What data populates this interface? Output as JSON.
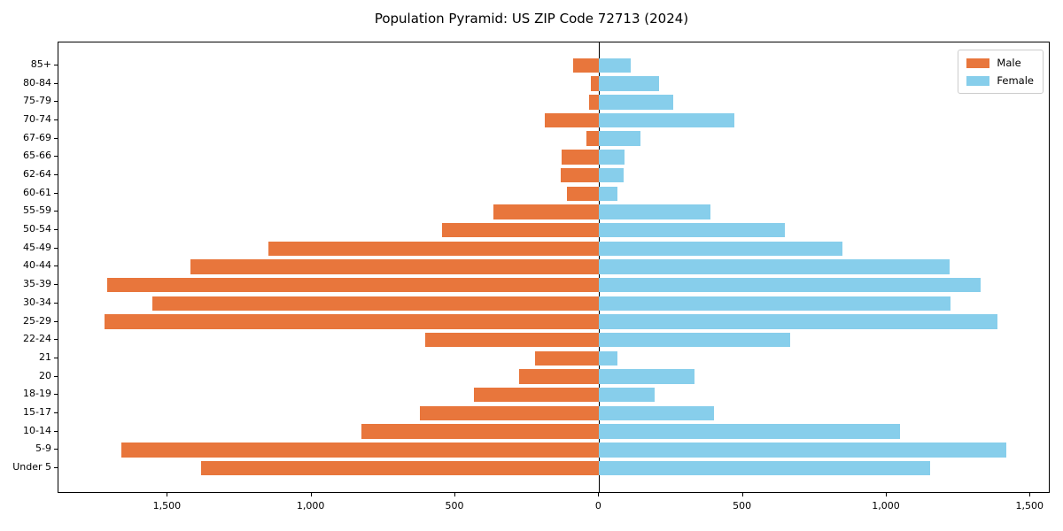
{
  "chart_data": {
    "type": "bar",
    "variant": "population-pyramid",
    "orientation": "horizontal",
    "title": "Population Pyramid: US ZIP Code 72713 (2024)",
    "categories_top_to_bottom": [
      "85+",
      "80-84",
      "75-79",
      "70-74",
      "67-69",
      "65-66",
      "62-64",
      "60-61",
      "55-59",
      "50-54",
      "45-49",
      "40-44",
      "35-39",
      "30-34",
      "25-29",
      "22-24",
      "21",
      "20",
      "18-19",
      "15-17",
      "10-14",
      "5-9",
      "Under 5"
    ],
    "series": [
      {
        "name": "Male",
        "color": "#e8763c",
        "side": "left",
        "values": [
          90,
          30,
          35,
          190,
          45,
          130,
          133,
          113,
          367,
          545,
          1150,
          1422,
          1710,
          1555,
          1719,
          606,
          224,
          277,
          435,
          622,
          826,
          1660,
          1383
        ]
      },
      {
        "name": "Female",
        "color": "#87ceeb",
        "side": "right",
        "values": [
          110,
          210,
          258,
          470,
          145,
          87,
          85,
          64,
          388,
          646,
          847,
          1218,
          1328,
          1222,
          1386,
          665,
          65,
          333,
          193,
          400,
          1047,
          1417,
          1150
        ]
      }
    ],
    "xticks": {
      "values": [
        -1500,
        -1000,
        -500,
        0,
        500,
        1000,
        1500
      ],
      "labels": [
        "1,500",
        "1,000",
        "500",
        "0",
        "500",
        "1,000",
        "1,500"
      ]
    },
    "xlim": [
      -1880,
      1570
    ],
    "ylabel": "",
    "xlabel": "",
    "grid": false,
    "legend": {
      "position": "upper right",
      "entries": [
        "Male",
        "Female"
      ]
    },
    "axis_color": "#000000",
    "background_color": "#ffffff"
  }
}
